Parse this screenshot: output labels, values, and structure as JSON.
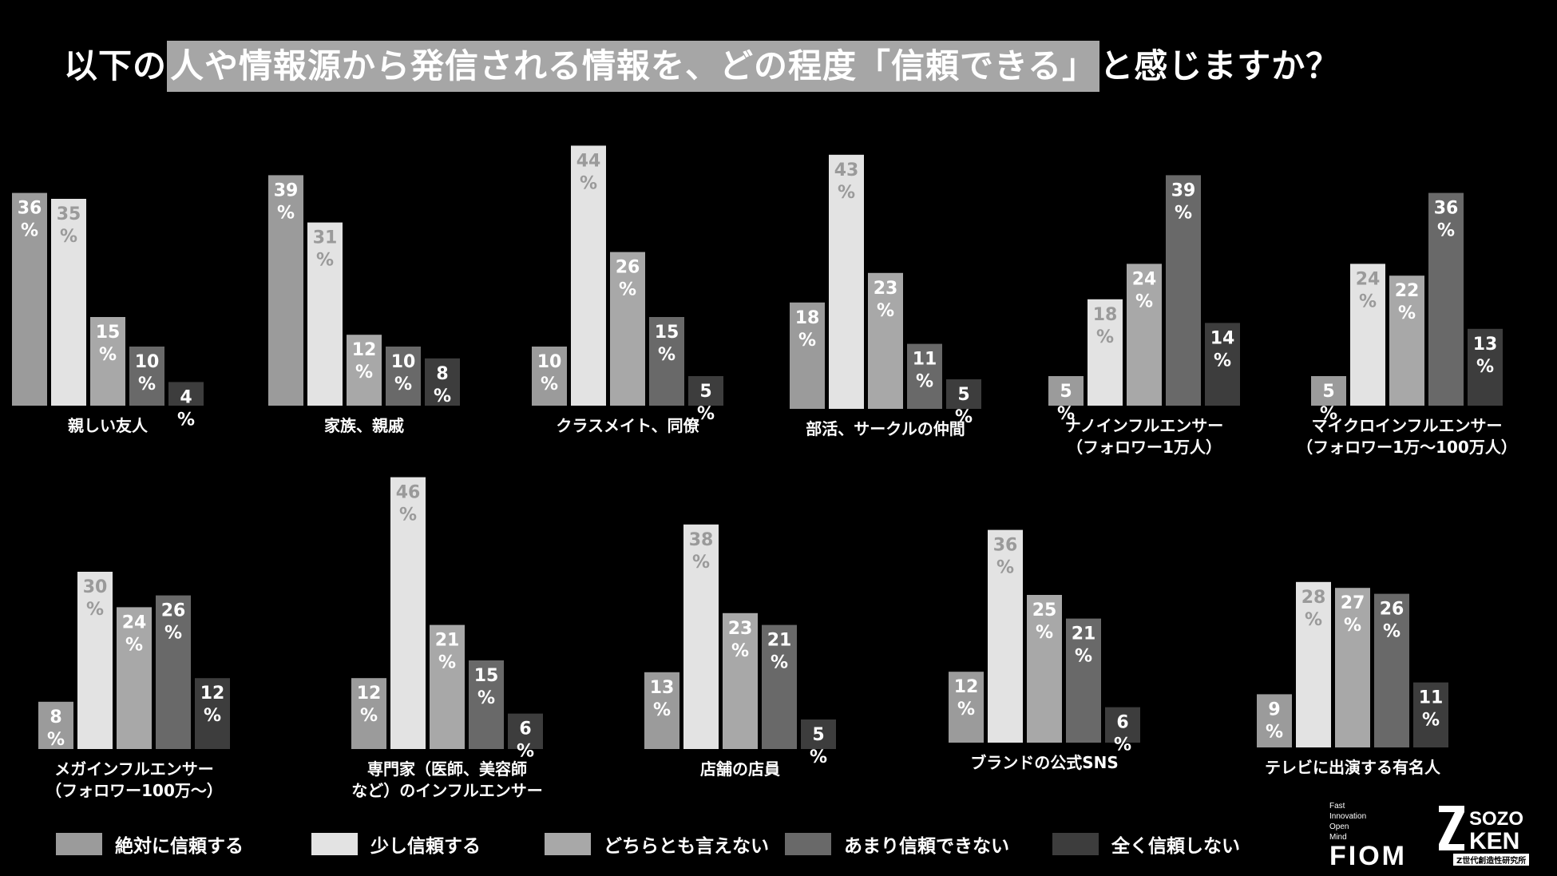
{
  "title": {
    "pre": "以下の",
    "highlight1": "人や情報源から発信される情報を、どの程度「信頼できる」",
    "post": "と感じますか？"
  },
  "legend": [
    {
      "label": "絶対に信頼する",
      "color": "#9b9b9b"
    },
    {
      "label": "少し信頼する",
      "color": "#e3e3e3"
    },
    {
      "label": "どちらとも言えない",
      "color": "#a8a8a8"
    },
    {
      "label": "あまり信頼できない",
      "color": "#696969"
    },
    {
      "label": "全く信頼しない",
      "color": "#3d3d3d"
    }
  ],
  "chart_data": [
    {
      "type": "bar",
      "category": [
        "親しい友人"
      ],
      "values": [
        36,
        35,
        15,
        10,
        4
      ]
    },
    {
      "type": "bar",
      "category": [
        "家族、親戚"
      ],
      "values": [
        39,
        31,
        12,
        10,
        8
      ]
    },
    {
      "type": "bar",
      "category": [
        "クラスメイト、同僚"
      ],
      "values": [
        10,
        44,
        26,
        15,
        5
      ]
    },
    {
      "type": "bar",
      "category": [
        "部活、サークルの仲間"
      ],
      "values": [
        18,
        43,
        23,
        11,
        5
      ]
    },
    {
      "type": "bar",
      "category": [
        "ナノインフルエンサー",
        "（フォロワー1万人）"
      ],
      "values": [
        5,
        18,
        24,
        39,
        14
      ]
    },
    {
      "type": "bar",
      "category": [
        "マイクロインフルエンサー",
        "（フォロワー1万〜100万人）"
      ],
      "values": [
        5,
        24,
        22,
        36,
        13
      ]
    },
    {
      "type": "bar",
      "category": [
        "メガインフルエンサー",
        "（フォロワー100万〜）"
      ],
      "values": [
        8,
        30,
        24,
        26,
        12
      ]
    },
    {
      "type": "bar",
      "category": [
        "専門家（医師、美容師",
        "など）のインフルエンサー"
      ],
      "values": [
        12,
        46,
        21,
        15,
        6
      ]
    },
    {
      "type": "bar",
      "category": [
        "店舗の店員"
      ],
      "values": [
        13,
        38,
        23,
        21,
        5
      ]
    },
    {
      "type": "bar",
      "category": [
        "ブランドの公式SNS"
      ],
      "values": [
        12,
        36,
        25,
        21,
        6
      ]
    },
    {
      "type": "bar",
      "category": [
        "テレビに出演する有名人"
      ],
      "values": [
        9,
        28,
        27,
        26,
        11
      ]
    }
  ],
  "series": [
    "絶対に信頼する",
    "少し信頼する",
    "どちらとも言えない",
    "あまり信頼できない",
    "全く信頼しない"
  ],
  "value_suffix": "%",
  "logos": {
    "fiom_lines": [
      "Fast",
      "Innovation",
      "Open",
      "Mind"
    ],
    "fiom_word": "FIOM",
    "sozo_top": "SOZO",
    "sozo_bottom": "KEN",
    "sozo_sub": "Z世代創造性研究所"
  }
}
